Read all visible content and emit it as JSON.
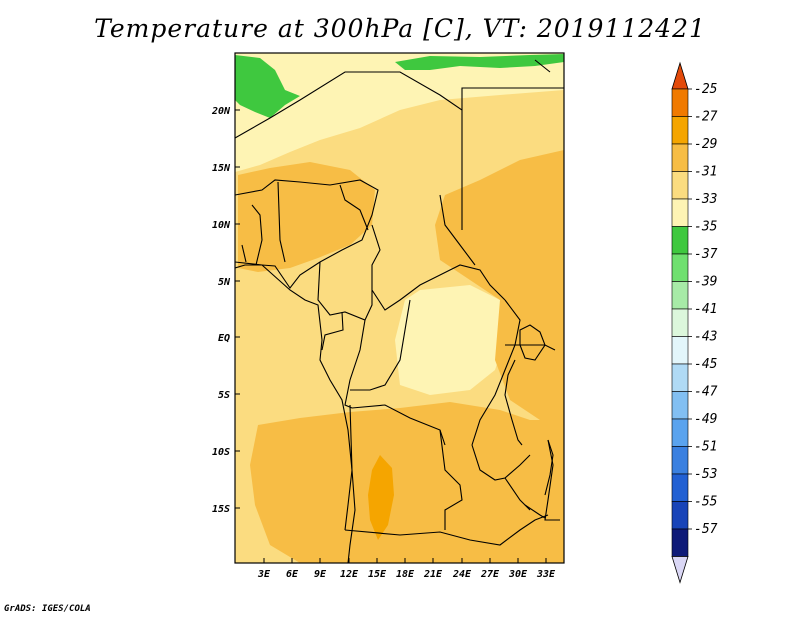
{
  "title": "Temperature at 300hPa [C], VT: 2019112421",
  "credit": "GrADS: IGES/COLA",
  "map": {
    "lat_labels": [
      "20N",
      "15N",
      "10N",
      "5N",
      "EQ",
      "5S",
      "10S",
      "15S"
    ],
    "lon_labels": [
      "3E",
      "6E",
      "9E",
      "12E",
      "15E",
      "18E",
      "21E",
      "24E",
      "27E",
      "30E",
      "33E"
    ]
  },
  "colorbar": {
    "labels": [
      "-25",
      "-27",
      "-29",
      "-31",
      "-33",
      "-35",
      "-37",
      "-39",
      "-41",
      "-43",
      "-45",
      "-47",
      "-49",
      "-51",
      "-53",
      "-55",
      "-57"
    ],
    "colors": [
      "#e34a0a",
      "#f07a00",
      "#f5a500",
      "#f7bd45",
      "#fbdc80",
      "#fef4b4",
      "#3fc83f",
      "#6fe06f",
      "#a7eba7",
      "#dcf7dc",
      "#e3f6fb",
      "#b0daf5",
      "#82bff2",
      "#5aa3ee",
      "#3a80e0",
      "#2160d3",
      "#1844b8",
      "#0e1a78",
      "#dad7f5"
    ]
  }
}
